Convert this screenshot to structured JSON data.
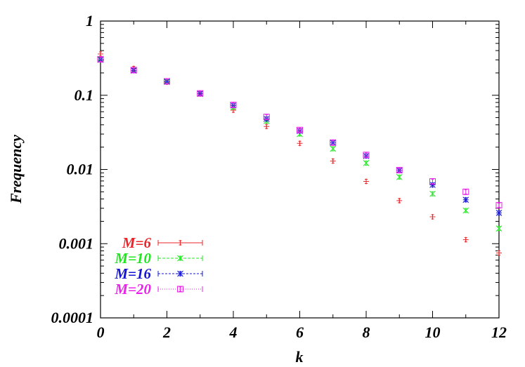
{
  "chart_data": {
    "type": "scatter",
    "title": "",
    "xlabel": "k",
    "ylabel": "Frequency",
    "xlim": [
      0,
      12
    ],
    "ylim": [
      0.0001,
      1
    ],
    "yscale": "log",
    "x_ticks": [
      "0",
      "2",
      "4",
      "6",
      "8",
      "10",
      "12"
    ],
    "y_ticks": [
      "0.0001",
      "0.001",
      "0.01",
      "0.1",
      "1"
    ],
    "grid": false,
    "legend_position": "bottom-left",
    "x": [
      0,
      1,
      2,
      3,
      4,
      5,
      6,
      7,
      8,
      9,
      10,
      11,
      12
    ],
    "series": [
      {
        "name": "M=6",
        "color": "#e8262a",
        "marker": "plus",
        "values": [
          0.36,
          0.23,
          0.15,
          0.104,
          0.063,
          0.038,
          0.0225,
          0.013,
          0.0069,
          0.0038,
          0.0023,
          0.00113,
          0.00075
        ]
      },
      {
        "name": "M=10",
        "color": "#22e622",
        "marker": "cross",
        "values": [
          0.31,
          0.22,
          0.152,
          0.104,
          0.069,
          0.045,
          0.03,
          0.019,
          0.0122,
          0.0079,
          0.0047,
          0.0028,
          0.0016
        ]
      },
      {
        "name": "M=16",
        "color": "#1414d2",
        "marker": "star",
        "values": [
          0.3,
          0.215,
          0.153,
          0.105,
          0.073,
          0.048,
          0.033,
          0.023,
          0.0152,
          0.0097,
          0.0062,
          0.0039,
          0.0026
        ]
      },
      {
        "name": "M=20",
        "color": "#e824e8",
        "marker": "square",
        "values": [
          0.305,
          0.218,
          0.154,
          0.106,
          0.074,
          0.051,
          0.034,
          0.023,
          0.0157,
          0.0098,
          0.0069,
          0.005,
          0.0033
        ]
      }
    ]
  }
}
